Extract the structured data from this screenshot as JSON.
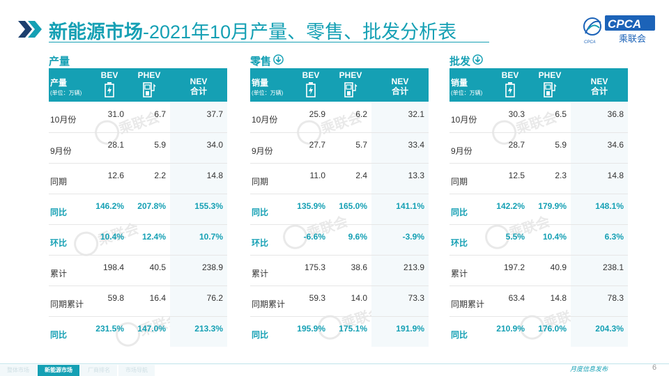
{
  "header": {
    "title_bold": "新能源市场",
    "title_rest": "-2021年10月产量、零售、批发分析表",
    "logo_text": "CPCA",
    "logo_sub": "乘联会",
    "logo_small": "CPCA"
  },
  "colors": {
    "accent": "#15a0b4"
  },
  "watermark_text": "乘联会",
  "panels": [
    {
      "title": "产量",
      "has_arrow": false,
      "header": {
        "label": "产量",
        "unit": "(单位：万辆)",
        "bev": "BEV",
        "phev": "PHEV",
        "nev": "NEV",
        "nev_sub": "合计"
      },
      "rows": [
        {
          "label": "10月份",
          "bev": "31.0",
          "phev": "6.7",
          "nev": "37.7",
          "hl": false
        },
        {
          "label": "9月份",
          "bev": "28.1",
          "phev": "5.9",
          "nev": "34.0",
          "hl": false
        },
        {
          "label": "同期",
          "bev": "12.6",
          "phev": "2.2",
          "nev": "14.8",
          "hl": false
        },
        {
          "label": "同比",
          "bev": "146.2%",
          "phev": "207.8%",
          "nev": "155.3%",
          "hl": true
        },
        {
          "label": "环比",
          "bev": "10.4%",
          "phev": "12.4%",
          "nev": "10.7%",
          "hl": true
        },
        {
          "label": "累计",
          "bev": "198.4",
          "phev": "40.5",
          "nev": "238.9",
          "hl": false
        },
        {
          "label": "同期累计",
          "bev": "59.8",
          "phev": "16.4",
          "nev": "76.2",
          "hl": false
        },
        {
          "label": "同比",
          "bev": "231.5%",
          "phev": "147.0%",
          "nev": "213.3%",
          "hl": true
        }
      ]
    },
    {
      "title": "零售",
      "has_arrow": true,
      "header": {
        "label": "销量",
        "unit": "(单位：万辆)",
        "bev": "BEV",
        "phev": "PHEV",
        "nev": "NEV",
        "nev_sub": "合计"
      },
      "rows": [
        {
          "label": "10月份",
          "bev": "25.9",
          "phev": "6.2",
          "nev": "32.1",
          "hl": false
        },
        {
          "label": "9月份",
          "bev": "27.7",
          "phev": "5.7",
          "nev": "33.4",
          "hl": false
        },
        {
          "label": "同期",
          "bev": "11.0",
          "phev": "2.4",
          "nev": "13.3",
          "hl": false
        },
        {
          "label": "同比",
          "bev": "135.9%",
          "phev": "165.0%",
          "nev": "141.1%",
          "hl": true
        },
        {
          "label": "环比",
          "bev": "-6.6%",
          "phev": "9.6%",
          "nev": "-3.9%",
          "hl": true
        },
        {
          "label": "累计",
          "bev": "175.3",
          "phev": "38.6",
          "nev": "213.9",
          "hl": false
        },
        {
          "label": "同期累计",
          "bev": "59.3",
          "phev": "14.0",
          "nev": "73.3",
          "hl": false
        },
        {
          "label": "同比",
          "bev": "195.9%",
          "phev": "175.1%",
          "nev": "191.9%",
          "hl": true
        }
      ]
    },
    {
      "title": "批发",
      "has_arrow": true,
      "header": {
        "label": "销量",
        "unit": "(单位：万辆)",
        "bev": "BEV",
        "phev": "PHEV",
        "nev": "NEV",
        "nev_sub": "合计"
      },
      "rows": [
        {
          "label": "10月份",
          "bev": "30.3",
          "phev": "6.5",
          "nev": "36.8",
          "hl": false
        },
        {
          "label": "9月份",
          "bev": "28.7",
          "phev": "5.9",
          "nev": "34.6",
          "hl": false
        },
        {
          "label": "同期",
          "bev": "12.5",
          "phev": "2.3",
          "nev": "14.8",
          "hl": false
        },
        {
          "label": "同比",
          "bev": "142.2%",
          "phev": "179.9%",
          "nev": "148.1%",
          "hl": true
        },
        {
          "label": "环比",
          "bev": "5.5%",
          "phev": "10.4%",
          "nev": "6.3%",
          "hl": true
        },
        {
          "label": "累计",
          "bev": "197.2",
          "phev": "40.9",
          "nev": "238.1",
          "hl": false
        },
        {
          "label": "同期累计",
          "bev": "63.4",
          "phev": "14.8",
          "nev": "78.3",
          "hl": false
        },
        {
          "label": "同比",
          "bev": "210.9%",
          "phev": "176.0%",
          "nev": "204.3%",
          "hl": true
        }
      ]
    }
  ],
  "footer": {
    "nav": [
      "整体市场",
      "新能源市场",
      "厂商排名",
      "市场导航"
    ],
    "active_index": 1,
    "text": "月度信息发布",
    "page": "6"
  }
}
